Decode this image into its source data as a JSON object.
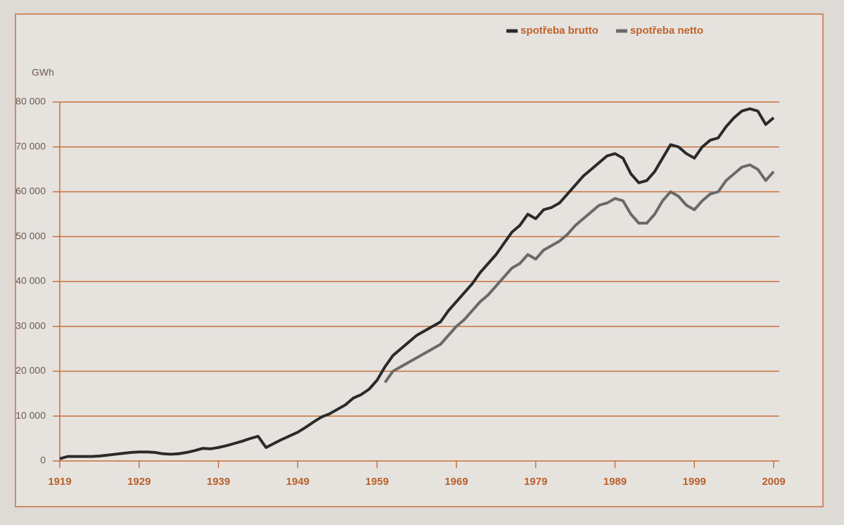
{
  "chart_data": {
    "type": "line",
    "y_label": "GWh",
    "xlim": [
      1919,
      2009
    ],
    "xticks": [
      1919,
      1929,
      1939,
      1949,
      1959,
      1969,
      1979,
      1989,
      1999,
      2009
    ],
    "ylim": [
      0,
      80000
    ],
    "yticks": [
      {
        "value": 0,
        "label": "0"
      },
      {
        "value": 10000,
        "label": "10 000"
      },
      {
        "value": 20000,
        "label": "20 000"
      },
      {
        "value": 30000,
        "label": "30 000"
      },
      {
        "value": 40000,
        "label": "40 000"
      },
      {
        "value": 50000,
        "label": "50 000"
      },
      {
        "value": 60000,
        "label": "60 000"
      },
      {
        "value": 70000,
        "label": "70 000"
      },
      {
        "value": 80000,
        "label": "80 000"
      }
    ],
    "grid": true,
    "grid_color": "#c8703a",
    "legend": "top-right",
    "series": [
      {
        "name": "spotřeba brutto",
        "color": "#2a2a2a",
        "x": [
          1919,
          1920,
          1921,
          1922,
          1923,
          1924,
          1925,
          1926,
          1927,
          1928,
          1929,
          1930,
          1931,
          1932,
          1933,
          1934,
          1935,
          1936,
          1937,
          1938,
          1939,
          1940,
          1941,
          1942,
          1943,
          1944,
          1945,
          1946,
          1947,
          1948,
          1949,
          1950,
          1951,
          1952,
          1953,
          1954,
          1955,
          1956,
          1957,
          1958,
          1959,
          1960,
          1961,
          1962,
          1963,
          1964,
          1965,
          1966,
          1967,
          1968,
          1969,
          1970,
          1971,
          1972,
          1973,
          1974,
          1975,
          1976,
          1977,
          1978,
          1979,
          1980,
          1981,
          1982,
          1983,
          1984,
          1985,
          1986,
          1987,
          1988,
          1989,
          1990,
          1991,
          1992,
          1993,
          1994,
          1995,
          1996,
          1997,
          1998,
          1999,
          2000,
          2001,
          2002,
          2003,
          2004,
          2005,
          2006,
          2007,
          2008,
          2009
        ],
        "values": [
          500,
          1000,
          1000,
          1000,
          1000,
          1100,
          1300,
          1500,
          1700,
          1900,
          2000,
          2000,
          1900,
          1600,
          1500,
          1600,
          1900,
          2300,
          2800,
          2700,
          3000,
          3400,
          3900,
          4400,
          5000,
          5500,
          3000,
          3900,
          4800,
          5600,
          6400,
          7500,
          8700,
          9800,
          10500,
          11500,
          12500,
          14000,
          14800,
          16000,
          18000,
          21000,
          23500,
          25000,
          26500,
          28000,
          29000,
          30000,
          31000,
          33500,
          35500,
          37500,
          39500,
          42000,
          44000,
          46000,
          48500,
          51000,
          52500,
          55000,
          54000,
          56000,
          56500,
          57500,
          59500,
          61500,
          63500,
          65000,
          66500,
          68000,
          68500,
          67500,
          64000,
          62000,
          62500,
          64500,
          67500,
          70500,
          70000,
          68500,
          67500,
          70000,
          71500,
          72000,
          74500,
          76500,
          78000,
          78500,
          78000,
          75000,
          76500
        ]
      },
      {
        "name": "spotřeba netto",
        "color": "#6a6a6a",
        "x": [
          1960,
          1961,
          1962,
          1963,
          1964,
          1965,
          1966,
          1967,
          1968,
          1969,
          1970,
          1971,
          1972,
          1973,
          1974,
          1975,
          1976,
          1977,
          1978,
          1979,
          1980,
          1981,
          1982,
          1983,
          1984,
          1985,
          1986,
          1987,
          1988,
          1989,
          1990,
          1991,
          1992,
          1993,
          1994,
          1995,
          1996,
          1997,
          1998,
          1999,
          2000,
          2001,
          2002,
          2003,
          2004,
          2005,
          2006,
          2007,
          2008,
          2009
        ],
        "values": [
          17500,
          20000,
          21000,
          22000,
          23000,
          24000,
          25000,
          26000,
          28000,
          30000,
          31500,
          33500,
          35500,
          37000,
          39000,
          41000,
          43000,
          44000,
          46000,
          45000,
          47000,
          48000,
          49000,
          50500,
          52500,
          54000,
          55500,
          57000,
          57500,
          58500,
          58000,
          55000,
          53000,
          53000,
          55000,
          58000,
          60000,
          59000,
          57000,
          56000,
          58000,
          59500,
          60000,
          62500,
          64000,
          65500,
          66000,
          65000,
          62500,
          64500
        ]
      }
    ]
  }
}
